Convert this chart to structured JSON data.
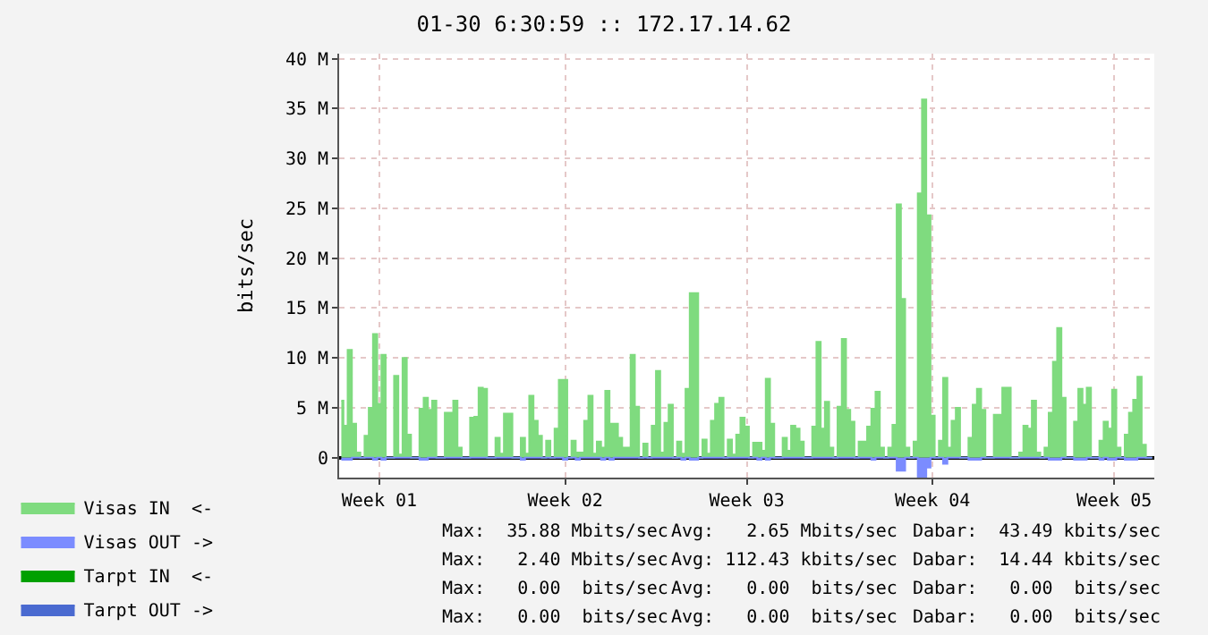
{
  "chart_data": {
    "type": "area",
    "title": "01-30 6:30:59 :: 172.17.14.62",
    "ylabel": "bits/sec",
    "categories": [
      null,
      null,
      null,
      null,
      null,
      null,
      null,
      null,
      null,
      "Week 01",
      null,
      null,
      null,
      null,
      null,
      null,
      null,
      null,
      null,
      null,
      null,
      null,
      null,
      null,
      null,
      null,
      null,
      null,
      null,
      null,
      null,
      null,
      null,
      null,
      null,
      null,
      null,
      null,
      null,
      null,
      null,
      null,
      null,
      null,
      null,
      null,
      null,
      null,
      null,
      null,
      null,
      null,
      null,
      "Week 02",
      null,
      null,
      null,
      null,
      null,
      null,
      null,
      null,
      null,
      null,
      null,
      null,
      null,
      null,
      null,
      null,
      null,
      null,
      null,
      null,
      null,
      null,
      null,
      null,
      null,
      null,
      null,
      null,
      null,
      null,
      null,
      null,
      null,
      null,
      null,
      null,
      null,
      null,
      null,
      null,
      null,
      null,
      "Week 03",
      null,
      null,
      null,
      null,
      null,
      null,
      null,
      null,
      null,
      null,
      null,
      null,
      null,
      null,
      null,
      null,
      null,
      null,
      null,
      null,
      null,
      null,
      null,
      null,
      null,
      null,
      null,
      null,
      null,
      null,
      null,
      null,
      null,
      null,
      null,
      null,
      null,
      null,
      null,
      null,
      null,
      null,
      null,
      "Week 04",
      null,
      null,
      null,
      null,
      null,
      null,
      null,
      null,
      null,
      null,
      null,
      null,
      null,
      null,
      null,
      null,
      null,
      null,
      null,
      null,
      null,
      null,
      null,
      null,
      null,
      null,
      null,
      null,
      null,
      null,
      null,
      null,
      null,
      null,
      null,
      null,
      null,
      null,
      null,
      null,
      null,
      null,
      "Week 05",
      null,
      null,
      null,
      null,
      null,
      null,
      null,
      null,
      null
    ],
    "ylim": [
      -2,
      40.5
    ],
    "yticks": [
      0,
      {
        "value": 5,
        "label": "5 M"
      },
      {
        "value": 10,
        "label": "10 M"
      },
      {
        "value": 15,
        "label": "15 M"
      },
      {
        "value": 20,
        "label": "20 M"
      },
      {
        "value": 25,
        "label": "25 M"
      },
      {
        "value": 30,
        "label": "30 M"
      },
      {
        "value": 35,
        "label": "35 M"
      },
      {
        "value": 40,
        "label": "40 M"
      }
    ],
    "grid": true,
    "legend": "bottom left",
    "series": [
      {
        "name": "Visas IN  <-",
        "color": "#7fdb7f",
        "values": [
          5.7,
          3.2,
          10.8,
          3.4,
          0.5,
          0,
          2.2,
          5.0,
          12.4,
          5.4,
          10.3,
          0,
          0,
          8.2,
          0.3,
          10.0,
          2.3,
          0,
          0,
          4.9,
          6.0,
          4.8,
          5.7,
          0,
          0,
          4.5,
          4.5,
          5.7,
          1.0,
          0,
          0,
          4.0,
          4.1,
          7.0,
          6.9,
          0,
          0,
          2.0,
          0.4,
          4.4,
          4.4,
          0,
          0,
          2.0,
          0.4,
          6.2,
          3.7,
          2.2,
          0,
          1.7,
          0,
          2.9,
          7.8,
          7.8,
          0,
          1.7,
          0.5,
          0.5,
          3.7,
          6.2,
          0.4,
          1.6,
          1.0,
          6.7,
          3.4,
          3.4,
          2.0,
          1.0,
          1.0,
          10.3,
          5.1,
          0,
          1.4,
          0,
          3.2,
          8.7,
          0.5,
          3.5,
          5.3,
          0,
          1.6,
          0.4,
          6.9,
          16.5,
          16.5,
          0,
          1.8,
          0.4,
          3.7,
          5.4,
          6.0,
          0,
          1.8,
          0.3,
          2.3,
          4.0,
          3.1,
          0,
          1.5,
          1.5,
          0.7,
          7.9,
          3.4,
          0,
          0,
          2.0,
          0.7,
          3.2,
          2.9,
          1.6,
          0,
          0,
          3.1,
          11.6,
          2.9,
          5.6,
          1.0,
          0,
          5.1,
          11.9,
          4.8,
          3.6,
          0,
          1.6,
          1.6,
          3.1,
          4.9,
          6.6,
          1.0,
          0,
          1.0,
          3.3,
          25.4,
          15.9,
          1.0,
          0,
          1.6,
          26.5,
          35.9,
          24.3,
          4.2,
          0,
          1.7,
          8.0,
          1.0,
          3.7,
          5.0,
          0,
          0,
          2.0,
          5.3,
          6.9,
          4.8,
          0,
          0,
          4.3,
          4.3,
          7.0,
          7.0,
          0,
          0,
          0.5,
          3.2,
          2.9,
          5.7,
          0.5,
          0,
          1.0,
          4.5,
          9.6,
          13.0,
          6.0,
          0,
          0,
          3.6,
          6.9,
          5.3,
          7.0,
          0,
          0,
          1.7,
          3.6,
          2.9,
          6.8,
          1.0,
          0,
          2.3,
          4.5,
          5.8,
          8.1,
          1.3,
          0,
          0
        ]
      },
      {
        "name": "Visas OUT ->",
        "color": "#7b8cff",
        "values": [
          -0.2,
          -0.2,
          -0.2,
          0,
          0,
          0,
          0,
          0,
          -0.2,
          0,
          -0.2,
          0,
          0,
          0,
          0,
          0,
          0,
          0,
          0,
          -0.2,
          -0.2,
          0,
          0,
          0,
          0,
          0,
          0,
          0,
          0,
          0,
          0,
          0,
          0,
          0,
          0,
          0,
          0,
          0,
          0,
          0,
          0,
          0,
          0,
          -0.2,
          0,
          0,
          0,
          0,
          0,
          0,
          0,
          0,
          0,
          -0.2,
          0,
          0,
          -0.2,
          0,
          0,
          0,
          0,
          0,
          -0.2,
          0,
          -0.2,
          0,
          0,
          0,
          0,
          0,
          0,
          0,
          0,
          0,
          0,
          0,
          0,
          0,
          0,
          0,
          0,
          -0.2,
          0,
          -0.2,
          -0.2,
          0,
          0,
          0,
          0,
          0,
          0,
          0,
          0,
          0,
          0,
          0,
          0,
          0,
          0,
          -0.2,
          0,
          -0.2,
          0,
          0,
          0,
          0,
          0,
          0,
          0,
          0,
          0,
          0,
          0,
          0,
          0,
          0,
          0,
          0,
          0,
          0,
          0,
          0,
          0,
          0,
          0,
          0,
          -0.2,
          0,
          0,
          0,
          0,
          0,
          -1.3,
          -1.3,
          0,
          0,
          0,
          -1.9,
          -1.9,
          -1.0,
          0,
          0,
          0,
          -0.6,
          0,
          0,
          0,
          0,
          0,
          -0.2,
          -0.2,
          -0.2,
          0,
          0,
          0,
          0,
          0,
          0,
          0,
          0,
          0,
          0,
          0,
          0,
          0,
          0,
          0,
          0,
          -0.2,
          -0.2,
          -0.2,
          0,
          0,
          0,
          -0.2,
          -0.2,
          -0.2,
          0,
          0,
          0,
          -0.2,
          0,
          -0.2,
          -0.2,
          0,
          0,
          -0.2,
          -0.2,
          -0.2,
          0,
          0,
          0,
          0
        ]
      },
      {
        "name": "Tarpt IN  <-",
        "color": "#00a000",
        "values": [
          null,
          null,
          null,
          null,
          null,
          null,
          null,
          null,
          null,
          null,
          null,
          null,
          null,
          null,
          null,
          null,
          null,
          null,
          null,
          null,
          null,
          null,
          null,
          null,
          null,
          null,
          null,
          null,
          null,
          null,
          null,
          null,
          null,
          null,
          null,
          null,
          null,
          null,
          null,
          null,
          null,
          null,
          null,
          null,
          null,
          null,
          null,
          null,
          null,
          null,
          null,
          null,
          null,
          null,
          null,
          null,
          null,
          null,
          null,
          null,
          null,
          null,
          null,
          null,
          null,
          null,
          null,
          null,
          null,
          null,
          null,
          null,
          null,
          null,
          null,
          null,
          null,
          null,
          null,
          null,
          null,
          null,
          null,
          null,
          null,
          null,
          null,
          null,
          null,
          null,
          null,
          null,
          null,
          null,
          null,
          null,
          null,
          null,
          null,
          null,
          null,
          null,
          null,
          null,
          null,
          null,
          null,
          null,
          null,
          null,
          null,
          null,
          null,
          null,
          null,
          null,
          null,
          null,
          null,
          null,
          null,
          null,
          null,
          null,
          null,
          null,
          null,
          null,
          null,
          null,
          null,
          null,
          null,
          null,
          null,
          null,
          null,
          null,
          null,
          null,
          null,
          null,
          null,
          null,
          null,
          null,
          null,
          null,
          null,
          null,
          null,
          null,
          null,
          null,
          null,
          null,
          null,
          null,
          null,
          null,
          null,
          null,
          null,
          null,
          null,
          null,
          null,
          null,
          null,
          null,
          null,
          null,
          null,
          null,
          null,
          null,
          null,
          null,
          null,
          null,
          null,
          null,
          null,
          null,
          null,
          null,
          null,
          null,
          null,
          null,
          null,
          null,
          null
        ]
      },
      {
        "name": "Tarpt OUT ->",
        "color": "#4a6ad0",
        "values": [
          null,
          null,
          null,
          null,
          null,
          null,
          null,
          null,
          null,
          null,
          null,
          null,
          null,
          null,
          null,
          null,
          null,
          null,
          null,
          null,
          null,
          null,
          null,
          null,
          null,
          null,
          null,
          null,
          null,
          null,
          null,
          null,
          null,
          null,
          null,
          null,
          null,
          null,
          null,
          null,
          null,
          null,
          null,
          null,
          null,
          null,
          null,
          null,
          null,
          null,
          null,
          null,
          null,
          null,
          null,
          null,
          null,
          null,
          null,
          null,
          null,
          null,
          null,
          null,
          null,
          null,
          null,
          null,
          null,
          null,
          null,
          null,
          null,
          null,
          null,
          null,
          null,
          null,
          null,
          null,
          null,
          null,
          null,
          null,
          null,
          null,
          null,
          null,
          null,
          null,
          null,
          null,
          null,
          null,
          null,
          null,
          null,
          null,
          null,
          null,
          null,
          null,
          null,
          null,
          null,
          null,
          null,
          null,
          null,
          null,
          null,
          null,
          null,
          null,
          null,
          null,
          null,
          null,
          null,
          null,
          null,
          null,
          null,
          null,
          null,
          null,
          null,
          null,
          null,
          null,
          null,
          null,
          null,
          null,
          null,
          null,
          null,
          null,
          null,
          null,
          null,
          null,
          null,
          null,
          null,
          null,
          null,
          null,
          null,
          null,
          null,
          null,
          null,
          null,
          null,
          null,
          null,
          null,
          null,
          null,
          null,
          null,
          null,
          null,
          null,
          null,
          null,
          null,
          null,
          null,
          null,
          null,
          null,
          null,
          null,
          null,
          null,
          null,
          null,
          null,
          null,
          null,
          null,
          null,
          null,
          null,
          null,
          null,
          null,
          null,
          null,
          null,
          null
        ]
      }
    ],
    "annotations": [
      "Max:  35.88 Mbits/sec",
      "Avg:   2.65 Mbits/sec",
      "Dabar:  43.49 kbits/sec",
      "Max:   2.40 Mbits/sec",
      "Avg: 112.43 kbits/sec",
      "Dabar:  14.44 kbits/sec",
      "Max:   0.00  bits/sec",
      "Avg:   0.00  bits/sec",
      "Dabar:   0.00  bits/sec",
      "Max:   0.00  bits/sec",
      "Avg:   0.00  bits/sec",
      "Dabar:   0.00  bits/sec"
    ]
  }
}
